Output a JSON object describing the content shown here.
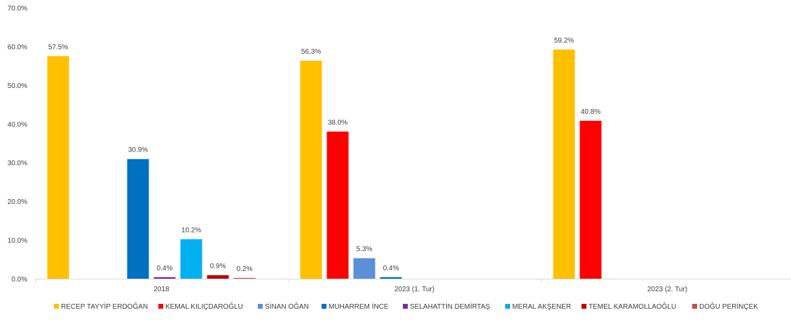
{
  "chart_data": {
    "type": "bar",
    "categories": [
      "2018",
      "2023 (1. Tur)",
      "2023 (2. Tur)"
    ],
    "y_tick_labels": [
      "0.0%",
      "10.0%",
      "20.0%",
      "30.0%",
      "40.0%",
      "50.0%",
      "60.0%",
      "70.0%"
    ],
    "ylim": [
      0,
      70
    ],
    "grid": false,
    "legend_position": "bottom",
    "series": [
      {
        "name": "RECEP TAYYİP ERDOĞAN",
        "color": "#FFC000",
        "values": [
          57.5,
          56.3,
          59.2
        ],
        "labels": [
          "57.5%",
          "56.3%",
          "59.2%"
        ]
      },
      {
        "name": "KEMAL KILIÇDAROĞLU",
        "color": "#FF0000",
        "values": [
          null,
          38.0,
          40.8
        ],
        "labels": [
          null,
          "38.0%",
          "40.8%"
        ]
      },
      {
        "name": "SİNAN OĞAN",
        "color": "#5B8FD6",
        "values": [
          null,
          5.3,
          null
        ],
        "labels": [
          null,
          "5.3%",
          null
        ]
      },
      {
        "name": "MUHARREM İNCE",
        "color": "#0070C0",
        "values": [
          30.9,
          0.4,
          null
        ],
        "labels": [
          "30.9%",
          "0.4%",
          null
        ]
      },
      {
        "name": "SELAHATTİN DEMİRTAŞ",
        "color": "#7030A0",
        "values": [
          0.4,
          null,
          null
        ],
        "labels": [
          "0.4%",
          null,
          null
        ]
      },
      {
        "name": "MERAL AKŞENER",
        "color": "#00B0F0",
        "values": [
          10.2,
          null,
          null
        ],
        "labels": [
          "10.2%",
          null,
          null
        ]
      },
      {
        "name": "TEMEL KARAMOLLAOĞLU",
        "color": "#C00000",
        "values": [
          0.9,
          null,
          null
        ],
        "labels": [
          "0.9%",
          null,
          null
        ]
      },
      {
        "name": "DOĞU PERİNÇEK",
        "color": "#C0504D",
        "values": [
          0.2,
          null,
          null
        ],
        "labels": [
          "0.2%",
          null,
          null
        ]
      }
    ]
  }
}
